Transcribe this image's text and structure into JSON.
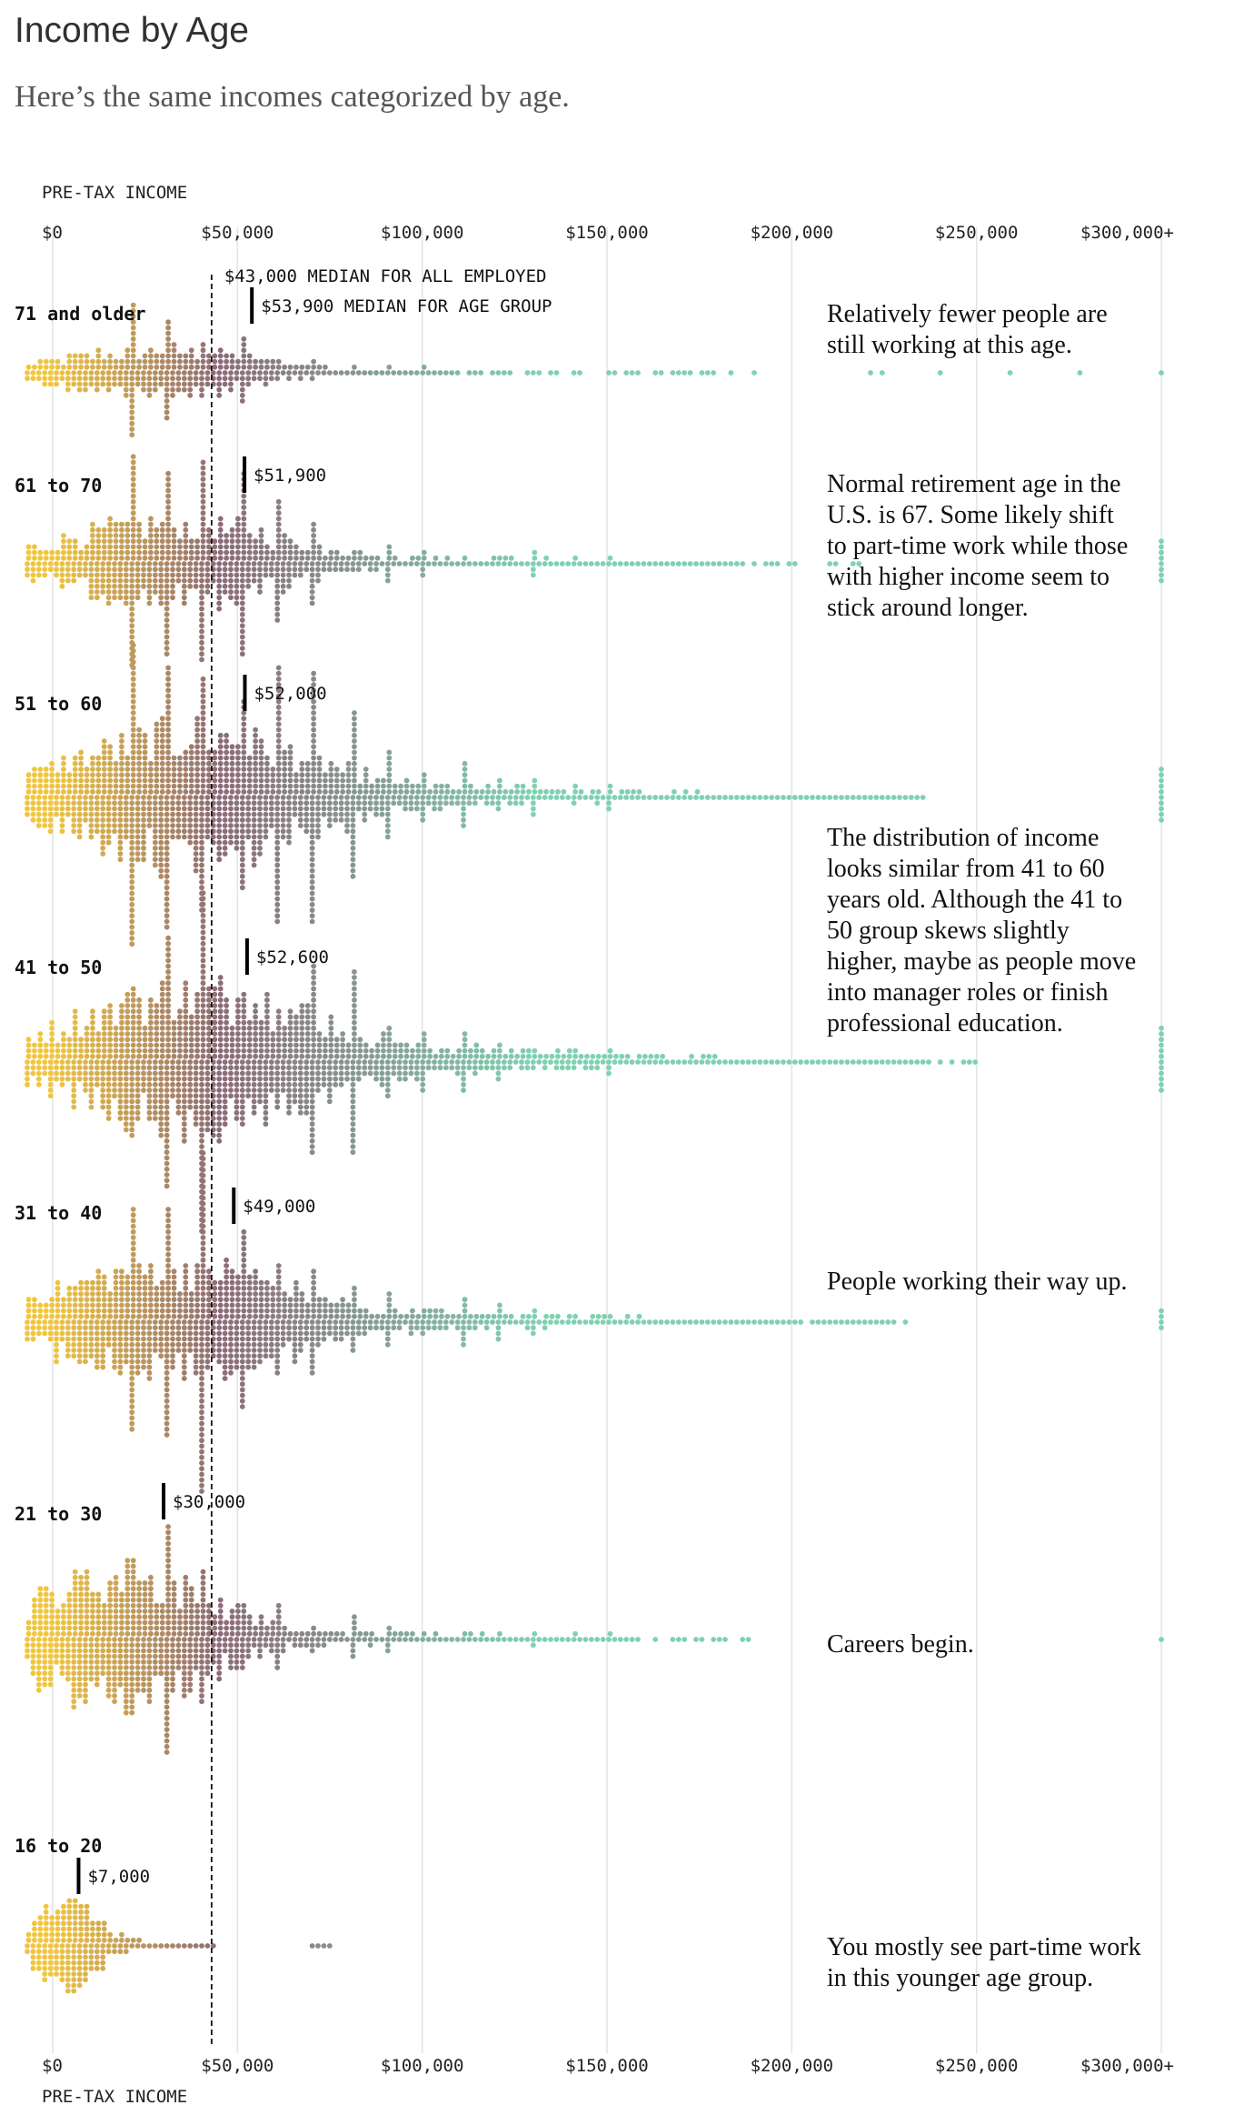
{
  "header": {
    "title": "Income by Age",
    "subtitle": "Here’s the same incomes categorized by age."
  },
  "chart_data": {
    "type": "scatter",
    "subtype": "beeswarm",
    "xlabel": "PRE-TAX INCOME",
    "xlim": [
      0,
      300000
    ],
    "xticks": [
      0,
      50000,
      100000,
      150000,
      200000,
      250000,
      300000
    ],
    "xtick_labels": [
      "$0",
      "$50,000",
      "$100,000",
      "$150,000",
      "$200,000",
      "$250,000",
      "$300,000+"
    ],
    "overall_median": {
      "value": 43000,
      "label": "$43,000 MEDIAN FOR ALL EMPLOYED"
    },
    "colors": {
      "low": "#f0c540",
      "mid": "#8c6b78",
      "high": "#7fd1b2",
      "grid": "#e3e3e3"
    },
    "groups": [
      {
        "label": "71 and older",
        "median": 53900,
        "median_label": "$53,900 MEDIAN FOR AGE GROUP",
        "note": "Relatively fewer people are still working at this age."
      },
      {
        "label": "61 to 70",
        "median": 51900,
        "median_label": "$51,900",
        "note": "Normal retirement age in the U.S. is 67. Some likely shift to part-time work while those with higher income seem to stick around longer."
      },
      {
        "label": "51 to 60",
        "median": 52000,
        "median_label": "$52,000",
        "note": ""
      },
      {
        "label": "41 to 50",
        "median": 52600,
        "median_label": "$52,600",
        "note": "The distribution of income looks similar from 41 to 60 years old. Although the 41 to 50 group skews slightly higher, maybe as people move into manager roles or finish professional education."
      },
      {
        "label": "31 to 40",
        "median": 49000,
        "median_label": "$49,000",
        "note": "People working their way up."
      },
      {
        "label": "21 to 30",
        "median": 30000,
        "median_label": "$30,000",
        "note": "Careers begin."
      },
      {
        "label": "16 to 20",
        "median": 7000,
        "median_label": "$7,000",
        "note": "You mostly see part-time work in this younger age group."
      }
    ]
  }
}
